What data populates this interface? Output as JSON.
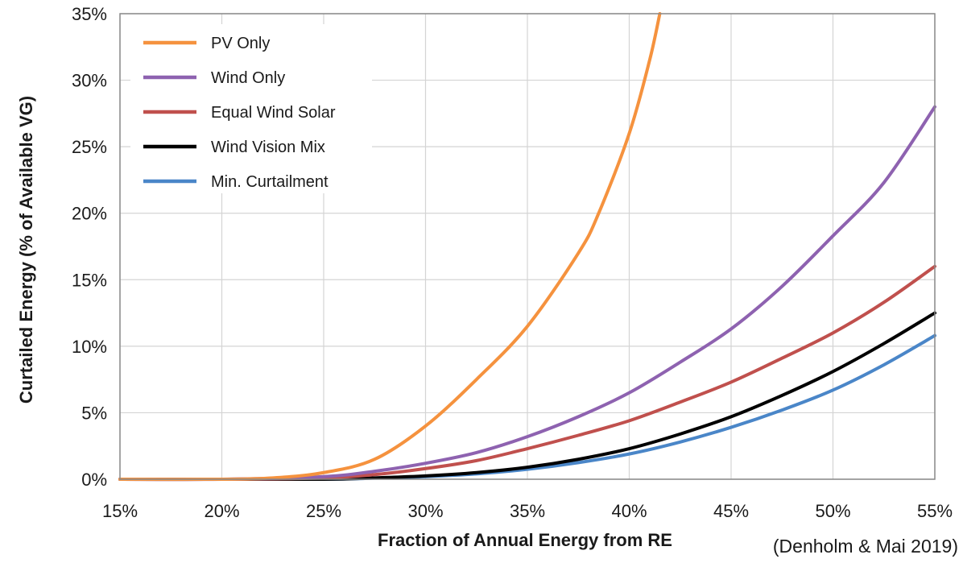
{
  "chart_data": {
    "type": "line",
    "title": "",
    "xlabel": "Fraction of Annual Energy from RE",
    "ylabel": "Curtailed Energy (% of Available VG)",
    "source_note": "(Denholm & Mai 2019)",
    "xlim": [
      15,
      55
    ],
    "ylim": [
      0,
      35
    ],
    "x_ticks": [
      15,
      20,
      25,
      30,
      35,
      40,
      45,
      50,
      55
    ],
    "y_ticks": [
      0,
      5,
      10,
      15,
      20,
      25,
      30,
      35
    ],
    "x_tick_labels": [
      "15%",
      "20%",
      "25%",
      "30%",
      "35%",
      "40%",
      "45%",
      "50%",
      "55%"
    ],
    "y_tick_labels": [
      "0%",
      "5%",
      "10%",
      "15%",
      "20%",
      "25%",
      "30%",
      "35%"
    ],
    "grid": true,
    "legend_position": "top-left",
    "series": [
      {
        "name": "PV Only",
        "color": "#F5923E",
        "x": [
          15,
          20,
          22.5,
          25,
          27.5,
          30,
          32.5,
          35,
          37.5,
          38.5,
          40,
          41,
          41.5
        ],
        "values": [
          0,
          0,
          0.1,
          0.5,
          1.5,
          4,
          7.5,
          11.5,
          17,
          20,
          26,
          31.5,
          35
        ]
      },
      {
        "name": "Wind Only",
        "color": "#8E62B0",
        "x": [
          15,
          20,
          25,
          27.5,
          30,
          32.5,
          35,
          37.5,
          40,
          42.5,
          45,
          47.5,
          50,
          52.5,
          55
        ],
        "values": [
          0,
          0,
          0.2,
          0.6,
          1.2,
          2.0,
          3.2,
          4.7,
          6.5,
          8.8,
          11.3,
          14.5,
          18.3,
          22.3,
          28
        ]
      },
      {
        "name": "Equal Wind Solar",
        "color": "#C0504D",
        "x": [
          15,
          20,
          25,
          27.5,
          30,
          32.5,
          35,
          37.5,
          40,
          42.5,
          45,
          47.5,
          50,
          52.5,
          55
        ],
        "values": [
          0,
          0,
          0.1,
          0.35,
          0.8,
          1.4,
          2.3,
          3.3,
          4.4,
          5.8,
          7.3,
          9.1,
          11.0,
          13.3,
          16
        ]
      },
      {
        "name": "Wind Vision Mix",
        "color": "#000000",
        "x": [
          15,
          20,
          25,
          27.5,
          30,
          32.5,
          35,
          37.5,
          40,
          42.5,
          45,
          47.5,
          50,
          52.5,
          55
        ],
        "values": [
          0,
          0,
          0,
          0.1,
          0.25,
          0.5,
          0.9,
          1.5,
          2.3,
          3.4,
          4.7,
          6.3,
          8.1,
          10.2,
          12.5
        ]
      },
      {
        "name": "Min. Curtailment",
        "color": "#4A86C8",
        "x": [
          15,
          20,
          25,
          27.5,
          30,
          32.5,
          35,
          37.5,
          40,
          42.5,
          45,
          47.5,
          50,
          52.5,
          55
        ],
        "values": [
          0,
          0,
          0,
          0.08,
          0.2,
          0.4,
          0.75,
          1.25,
          1.9,
          2.8,
          3.9,
          5.2,
          6.7,
          8.6,
          10.8
        ]
      }
    ]
  }
}
